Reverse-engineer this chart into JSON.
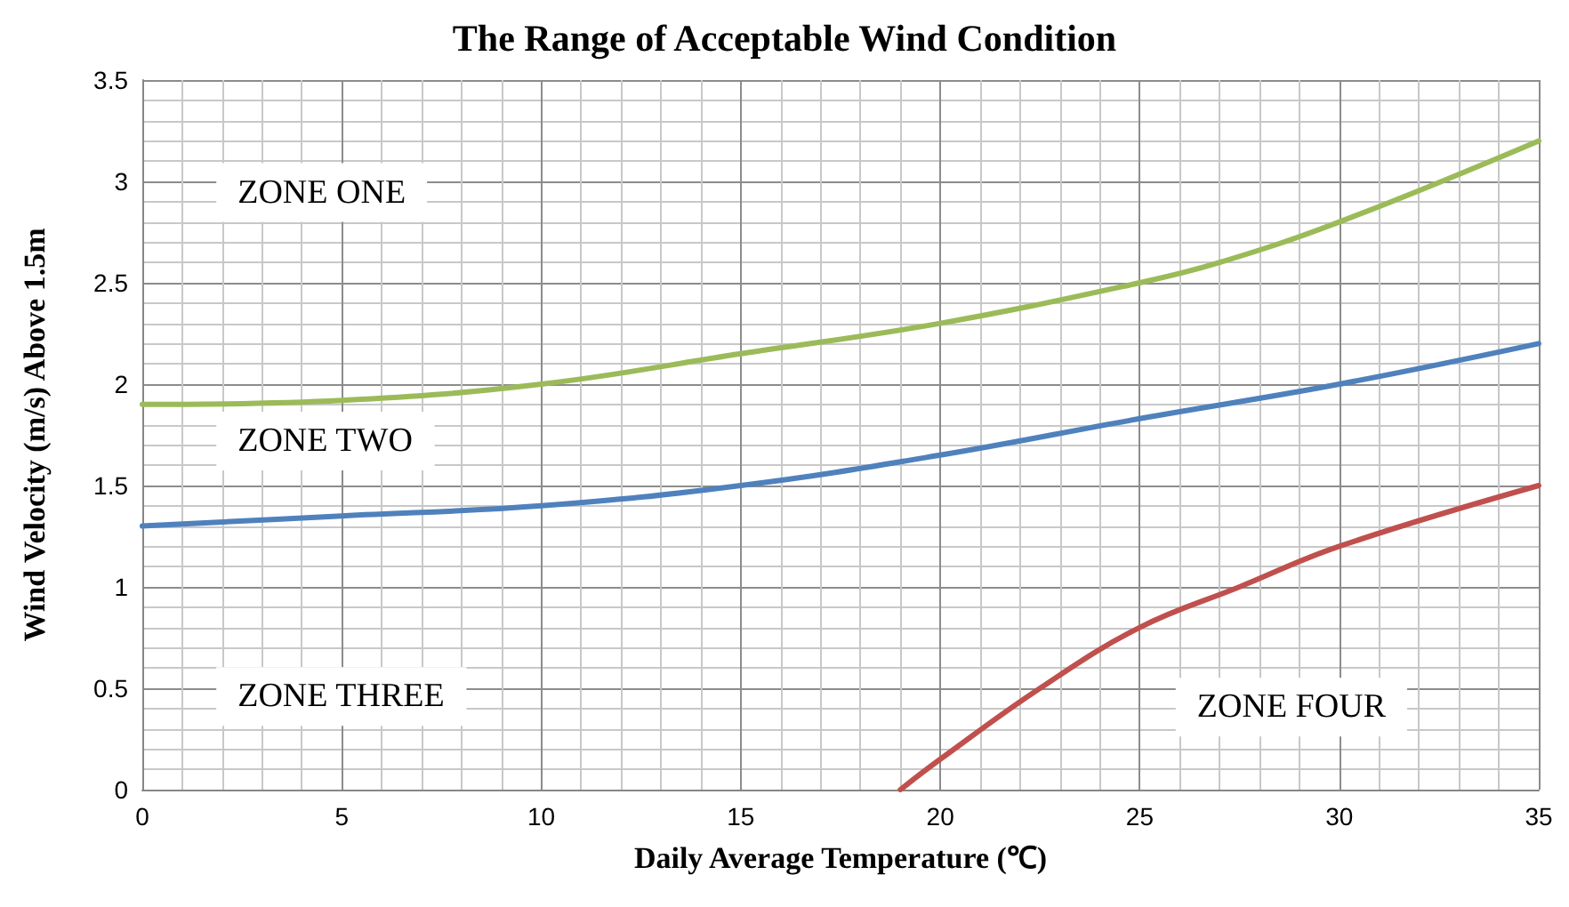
{
  "chart_data": {
    "type": "line",
    "title": "The Range of Acceptable Wind Condition",
    "xlabel": "Daily Average Temperature (℃)",
    "ylabel": "Wind Velocity (m/s) Above 1.5m",
    "series": [
      {
        "color": "#9bbb59",
        "x": [
          0,
          5,
          10,
          15,
          20,
          25,
          27,
          30,
          35
        ],
        "values": [
          1.9,
          1.92,
          2.0,
          2.15,
          2.3,
          2.5,
          2.6,
          2.8,
          3.2
        ]
      },
      {
        "color": "#4f81bd",
        "x": [
          0,
          5,
          10,
          15,
          20,
          25,
          30,
          35
        ],
        "values": [
          1.3,
          1.35,
          1.4,
          1.5,
          1.65,
          1.83,
          2.0,
          2.2
        ]
      },
      {
        "color": "#c0504d",
        "x": [
          19,
          20,
          22.5,
          25,
          27.5,
          30,
          35
        ],
        "values": [
          0,
          0.15,
          0.5,
          0.8,
          1.0,
          1.2,
          1.5
        ]
      }
    ],
    "xlim": [
      0,
      35
    ],
    "xticks": [
      0,
      5,
      10,
      15,
      20,
      25,
      30,
      35
    ],
    "ylim": [
      0,
      3.5
    ],
    "yticks": [
      0,
      0.5,
      1,
      1.5,
      2,
      2.5,
      3,
      3.5
    ],
    "grid": true,
    "marker": "none",
    "line_style": "solid",
    "annotations": [
      "ZONE ONE",
      "ZONE TWO",
      "ZONE THREE",
      "ZONE FOUR"
    ]
  }
}
